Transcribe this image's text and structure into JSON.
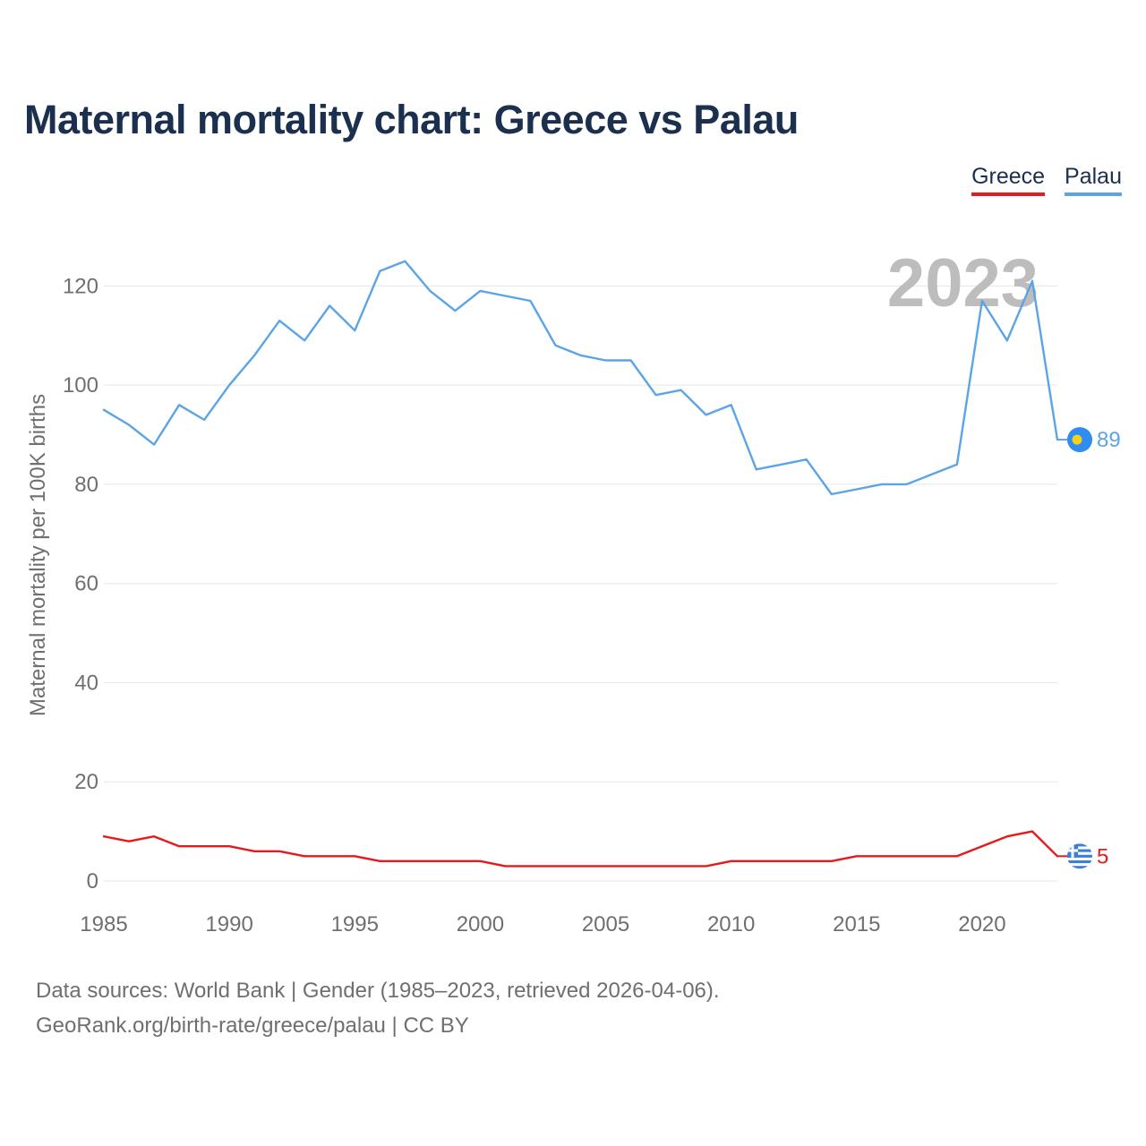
{
  "title": "Maternal mortality chart: Greece vs Palau",
  "legend": {
    "greece": "Greece",
    "palau": "Palau"
  },
  "year_watermark": "2023",
  "end_labels": {
    "greece": "5",
    "palau": "89"
  },
  "source_line1": "Data sources: World Bank | Gender (1985–2023, retrieved 2026-04-06).",
  "source_line2": "GeoRank.org/birth-rate/greece/palau | CC BY",
  "chart_data": {
    "type": "line",
    "title": "Maternal mortality chart: Greece vs Palau",
    "xlabel": "",
    "ylabel": "Maternal mortality per 100K births",
    "xlim": [
      1985,
      2023
    ],
    "ylim": [
      0,
      130
    ],
    "xticks": [
      1985,
      1990,
      1995,
      2000,
      2005,
      2010,
      2015,
      2020
    ],
    "yticks": [
      0,
      20,
      40,
      60,
      80,
      100,
      120
    ],
    "grid": true,
    "legend_position": "top-right",
    "x": [
      1985,
      1986,
      1987,
      1988,
      1989,
      1990,
      1991,
      1992,
      1993,
      1994,
      1995,
      1996,
      1997,
      1998,
      1999,
      2000,
      2001,
      2002,
      2003,
      2004,
      2005,
      2006,
      2007,
      2008,
      2009,
      2010,
      2011,
      2012,
      2013,
      2014,
      2015,
      2016,
      2017,
      2018,
      2019,
      2020,
      2021,
      2022,
      2023
    ],
    "series": [
      {
        "name": "Greece",
        "color": "#e8191c",
        "values": [
          9,
          8,
          9,
          7,
          7,
          7,
          6,
          6,
          5,
          5,
          5,
          4,
          4,
          4,
          4,
          4,
          3,
          3,
          3,
          3,
          3,
          3,
          3,
          3,
          3,
          4,
          4,
          4,
          4,
          4,
          5,
          5,
          5,
          5,
          5,
          7,
          9,
          10,
          5
        ]
      },
      {
        "name": "Palau",
        "color": "#5ba4e6",
        "values": [
          95,
          92,
          88,
          96,
          93,
          100,
          106,
          113,
          109,
          116,
          111,
          123,
          125,
          119,
          115,
          119,
          118,
          117,
          108,
          106,
          105,
          105,
          98,
          99,
          94,
          96,
          83,
          84,
          85,
          78,
          79,
          80,
          80,
          82,
          84,
          117,
          109,
          121,
          89
        ]
      }
    ]
  }
}
